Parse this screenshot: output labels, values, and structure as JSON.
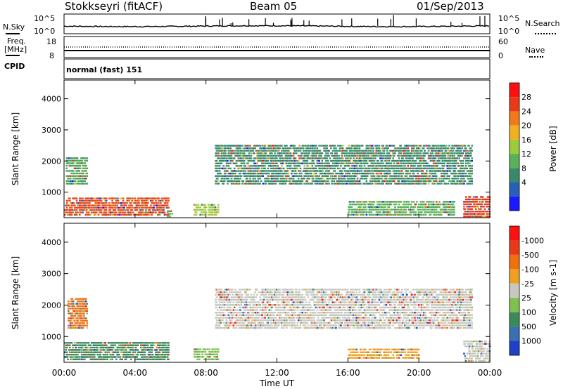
{
  "header": {
    "station": "Stokkseyri (fitACF)",
    "beam": "Beam 05",
    "date": "01/Sep/2013"
  },
  "sky_panel": {
    "left_label": "N.Sky",
    "left_ticks": [
      "10^5",
      "10^0"
    ],
    "right_label": "N.Search",
    "right_ticks": [
      "10^5",
      "10^0"
    ]
  },
  "freq_panel": {
    "left_label_1": "Freq.",
    "left_label_2": "[MHz]",
    "left_ticks": [
      "18",
      "8"
    ],
    "right_label": "Nave",
    "right_ticks": [
      "60",
      "0"
    ]
  },
  "cpid_panel": {
    "label": "CPID",
    "text": "normal (fast) 151"
  },
  "chart_data": [
    {
      "type": "heatmap",
      "panel": "power",
      "ylabel": "Slant Range [km]",
      "y_ticks": [
        "1000",
        "2000",
        "3000",
        "4000"
      ],
      "ylim": [
        180,
        4600
      ],
      "x_ticks": [
        "00:00",
        "04:00",
        "08:00",
        "12:00",
        "16:00",
        "20:00",
        "00:00"
      ],
      "xlabel": "Time UT",
      "colorbar_label": "Power [dB]",
      "colorbar_ticks": [
        "4",
        "8",
        "12",
        "16",
        "20",
        "24",
        "28"
      ],
      "colorbar_colors": [
        "#1a1aff",
        "#2a5fb8",
        "#3a8a6a",
        "#59b25a",
        "#9ccc3c",
        "#f0b020",
        "#f07a1a",
        "#e83a1a",
        "#ff1010"
      ],
      "regions": [
        {
          "t0": 0.0,
          "t1": 5.9,
          "r0": 300,
          "r1": 900,
          "color": "#e84a1a"
        },
        {
          "t0": 0.1,
          "t1": 1.3,
          "r0": 1300,
          "r1": 2200,
          "color": "#4aa85a"
        },
        {
          "t0": 5.8,
          "t1": 6.1,
          "r0": 250,
          "r1": 500,
          "color": "#59b25a"
        },
        {
          "t0": 7.3,
          "t1": 8.7,
          "r0": 300,
          "r1": 700,
          "color": "#9ccc3c"
        },
        {
          "t0": 8.5,
          "t1": 23.0,
          "r0": 1300,
          "r1": 2600,
          "color": "#3a8a6a"
        },
        {
          "t0": 16.0,
          "t1": 22.0,
          "r0": 300,
          "r1": 800,
          "color": "#59b25a"
        },
        {
          "t0": 22.5,
          "t1": 24.0,
          "r0": 250,
          "r1": 950,
          "color": "#e83a1a"
        }
      ]
    },
    {
      "type": "heatmap",
      "panel": "velocity",
      "ylabel": "Slant Range [km]",
      "y_ticks": [
        "1000",
        "2000",
        "3000",
        "4000"
      ],
      "ylim": [
        180,
        4600
      ],
      "x_ticks": [
        "00:00",
        "04:00",
        "08:00",
        "12:00",
        "16:00",
        "20:00",
        "00:00"
      ],
      "xlabel": "Time UT",
      "colorbar_label": "Velocity [m s-1]",
      "colorbar_ticks": [
        "1000",
        "500",
        "100",
        "25",
        "-25",
        "-100",
        "-500",
        "-1000"
      ],
      "colorbar_colors": [
        "#2040c8",
        "#3a70b0",
        "#3a8a5a",
        "#80c050",
        "#c8c8c0",
        "#f0a020",
        "#f07010",
        "#e83a1a",
        "#ff1010"
      ],
      "regions": [
        {
          "t0": 0.0,
          "t1": 5.9,
          "r0": 300,
          "r1": 900,
          "color": "#3a8a5a"
        },
        {
          "t0": 0.2,
          "t1": 1.3,
          "r0": 1300,
          "r1": 2300,
          "color": "#f07010"
        },
        {
          "t0": 7.3,
          "t1": 8.7,
          "r0": 300,
          "r1": 700,
          "color": "#80c050"
        },
        {
          "t0": 8.5,
          "t1": 23.0,
          "r0": 1300,
          "r1": 2600,
          "color": "#c8c8c0"
        },
        {
          "t0": 16.0,
          "t1": 20.0,
          "r0": 350,
          "r1": 700,
          "color": "#f0a020"
        },
        {
          "t0": 22.5,
          "t1": 24.0,
          "r0": 250,
          "r1": 950,
          "color": "#c8c8c0"
        }
      ]
    }
  ]
}
